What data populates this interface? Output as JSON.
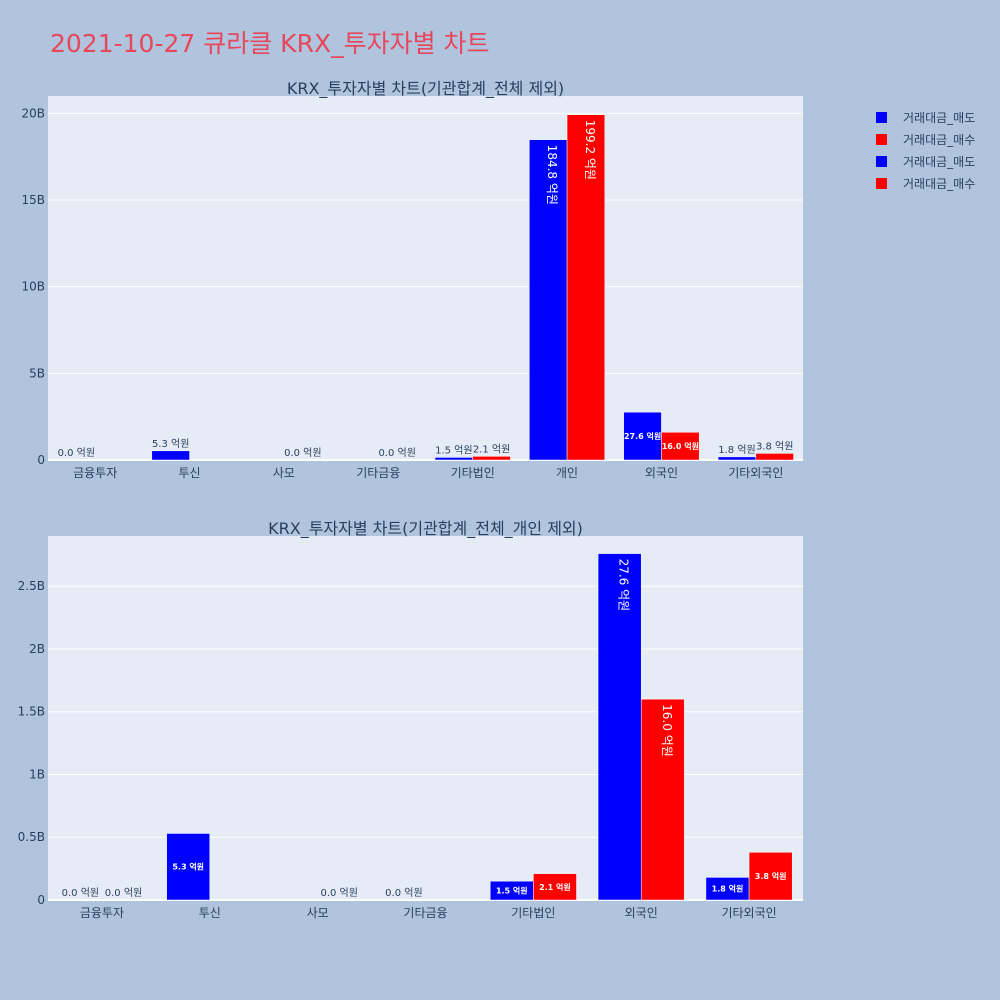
{
  "page": {
    "title": "2021-10-27 큐라클 KRX_투자자별 차트"
  },
  "legend": {
    "items": [
      {
        "label": "거래대금_매도",
        "color": "#0000ff"
      },
      {
        "label": "거래대금_매수",
        "color": "#ff0000"
      },
      {
        "label": "거래대금_매도",
        "color": "#0000ff"
      },
      {
        "label": "거래대금_매수",
        "color": "#ff0000"
      }
    ]
  },
  "chart_data": [
    {
      "type": "bar",
      "title": "KRX_투자자별 차트(기관합계_전체 제외)",
      "categories": [
        "금융투자",
        "투신",
        "사모",
        "기타금융",
        "기타법인",
        "개인",
        "외국인",
        "기타외국인"
      ],
      "ylim": [
        0,
        2.1
      ],
      "yticks": [
        0,
        0.5,
        1.0,
        1.5,
        2.0
      ],
      "ytick_labels": [
        "0",
        "5B",
        "10B",
        "15B",
        "20B"
      ],
      "grid": true,
      "series": [
        {
          "name": "거래대금_매도",
          "color": "#0000ff",
          "values": [
            0.0,
            0.053,
            null,
            null,
            0.015,
            1.848,
            0.276,
            0.018
          ],
          "labels": [
            "0.0 억원",
            "5.3 억원",
            null,
            null,
            "1.5 억원",
            "184.8 억원",
            "27.6 억원",
            "1.8 억원"
          ]
        },
        {
          "name": "거래대금_매수",
          "color": "#ff0000",
          "values": [
            null,
            null,
            0.0,
            0.0,
            0.021,
            1.992,
            0.16,
            0.038
          ],
          "labels": [
            null,
            null,
            "0.0 억원",
            "0.0 억원",
            "2.1 억원",
            "199.2 억원",
            "16.0 억원",
            "3.8 억원"
          ]
        }
      ]
    },
    {
      "type": "bar",
      "title": "KRX_투자자별 차트(기관합계_전체_개인 제외)",
      "categories": [
        "금융투자",
        "투신",
        "사모",
        "기타금융",
        "기타법인",
        "외국인",
        "기타외국인"
      ],
      "ylim": [
        0,
        0.29
      ],
      "yticks": [
        0,
        0.05,
        0.1,
        0.15,
        0.2,
        0.25
      ],
      "ytick_labels": [
        "0",
        "0.5B",
        "1B",
        "1.5B",
        "2B",
        "2.5B"
      ],
      "grid": true,
      "series": [
        {
          "name": "거래대금_매도",
          "color": "#0000ff",
          "values": [
            0.0,
            0.053,
            null,
            0.0,
            0.015,
            0.276,
            0.018
          ],
          "labels": [
            "0.0 억원",
            "5.3 억원",
            null,
            "0.0 억원",
            "1.5 억원",
            "27.6 억원",
            "1.8 억원"
          ]
        },
        {
          "name": "거래대금_매수",
          "color": "#ff0000",
          "values": [
            0.0,
            null,
            0.0,
            null,
            0.021,
            0.16,
            0.038
          ],
          "labels": [
            "0.0 억원",
            null,
            "0.0 억원",
            null,
            "2.1 억원",
            "16.0 억원",
            "3.8 억원"
          ]
        }
      ]
    }
  ]
}
